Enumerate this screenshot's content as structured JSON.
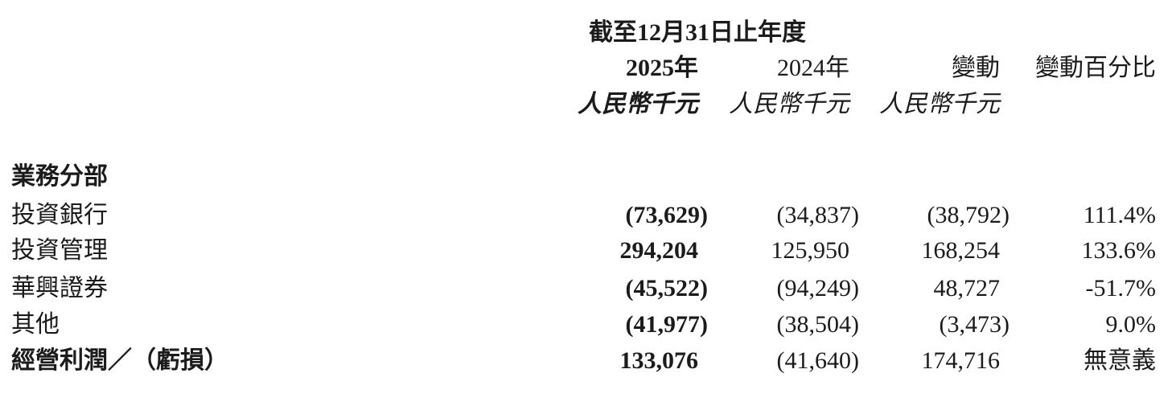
{
  "document": {
    "kind": "annual-report-segment-results-table",
    "colors": {
      "text": "#1b1b1b",
      "background": "#ffffff"
    }
  },
  "header": {
    "period_title": "截至12月31日止年度",
    "col_2025": "2025年",
    "col_2024": "2024年",
    "col_change": "變動",
    "col_change_pct": "變動百分比",
    "unit_2025": "人民幣千元",
    "unit_2024": "人民幣千元",
    "unit_change": "人民幣千元"
  },
  "section": {
    "title": "業務分部"
  },
  "rows": [
    {
      "label": "投資銀行",
      "v2025": "(73,629)",
      "v2024": "(34,837)",
      "change": "(38,792)",
      "change_pct": "111.4%"
    },
    {
      "label": "投資管理",
      "v2025": "294,204",
      "v2024": "125,950",
      "change": "168,254",
      "change_pct": "133.6%"
    },
    {
      "label": "華興證券",
      "v2025": "(45,522)",
      "v2024": "(94,249)",
      "change": "48,727",
      "change_pct": "-51.7%"
    },
    {
      "label": "其他",
      "v2025": "(41,977)",
      "v2024": "(38,504)",
      "change": "(3,473)",
      "change_pct": "9.0%"
    },
    {
      "label": "經營利潤／（虧損）",
      "v2025": "133,076",
      "v2024": "(41,640)",
      "change": "174,716",
      "change_pct": "無意義"
    }
  ]
}
